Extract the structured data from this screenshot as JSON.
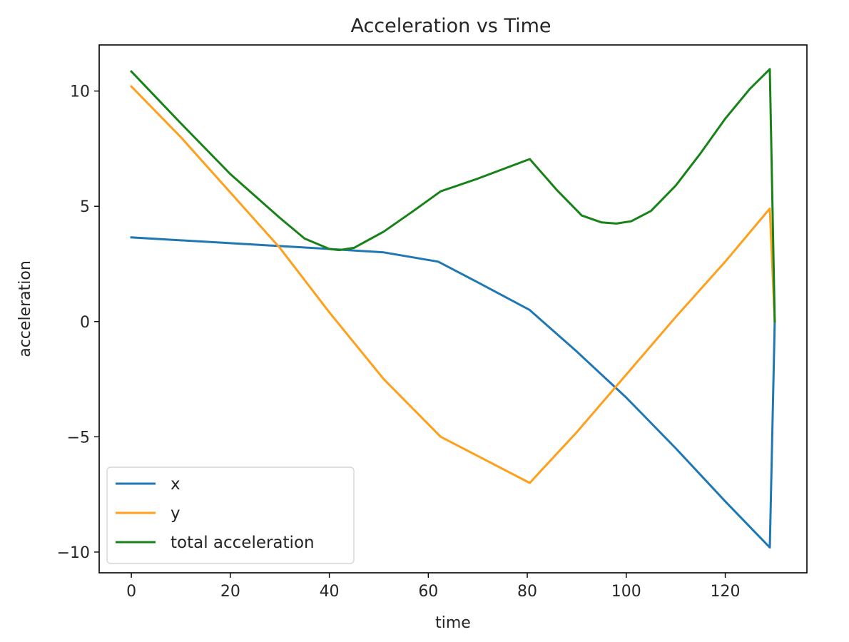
{
  "chart_data": {
    "type": "line",
    "title": "Acceleration vs Time",
    "xlabel": "time",
    "ylabel": "acceleration",
    "xlim": [
      -6.5,
      136.5
    ],
    "ylim": [
      -10.9,
      12
    ],
    "xticks": [
      0,
      20,
      40,
      60,
      80,
      100,
      120
    ],
    "yticks": [
      -10,
      -5,
      0,
      5,
      10
    ],
    "ytick_labels": [
      "−10",
      "−5",
      "0",
      "5",
      "10"
    ],
    "grid": false,
    "legend": "lower-left",
    "series": [
      {
        "name": "x",
        "color": "#1f77b4",
        "points": [
          [
            0,
            3.65
          ],
          [
            20,
            3.4
          ],
          [
            40,
            3.15
          ],
          [
            51,
            3.0
          ],
          [
            62,
            2.6
          ],
          [
            70,
            1.7
          ],
          [
            80.5,
            0.5
          ],
          [
            90,
            -1.3
          ],
          [
            100,
            -3.3
          ],
          [
            110,
            -5.5
          ],
          [
            120,
            -7.8
          ],
          [
            129,
            -9.8
          ],
          [
            130,
            0
          ]
        ]
      },
      {
        "name": "y",
        "color": "#ff9f1c",
        "points": [
          [
            0,
            10.2
          ],
          [
            10,
            8.0
          ],
          [
            20,
            5.6
          ],
          [
            30,
            3.2
          ],
          [
            40,
            0.4
          ],
          [
            51,
            -2.5
          ],
          [
            62.5,
            -5.0
          ],
          [
            80.5,
            -7.0
          ],
          [
            90,
            -4.8
          ],
          [
            100,
            -2.3
          ],
          [
            110,
            0.2
          ],
          [
            120,
            2.6
          ],
          [
            129,
            4.9
          ],
          [
            130,
            0
          ]
        ]
      },
      {
        "name": "total acceleration",
        "color": "#178217",
        "points": [
          [
            0,
            10.85
          ],
          [
            10,
            8.6
          ],
          [
            20,
            6.4
          ],
          [
            30,
            4.5
          ],
          [
            35,
            3.6
          ],
          [
            40,
            3.15
          ],
          [
            42,
            3.1
          ],
          [
            45,
            3.2
          ],
          [
            51,
            3.9
          ],
          [
            57,
            4.8
          ],
          [
            62.5,
            5.65
          ],
          [
            70,
            6.2
          ],
          [
            80.5,
            7.05
          ],
          [
            86,
            5.7
          ],
          [
            91,
            4.6
          ],
          [
            95,
            4.3
          ],
          [
            98,
            4.25
          ],
          [
            101,
            4.35
          ],
          [
            105,
            4.8
          ],
          [
            110,
            5.9
          ],
          [
            115,
            7.3
          ],
          [
            120,
            8.8
          ],
          [
            125,
            10.1
          ],
          [
            129,
            10.95
          ],
          [
            130,
            0
          ]
        ]
      }
    ]
  }
}
